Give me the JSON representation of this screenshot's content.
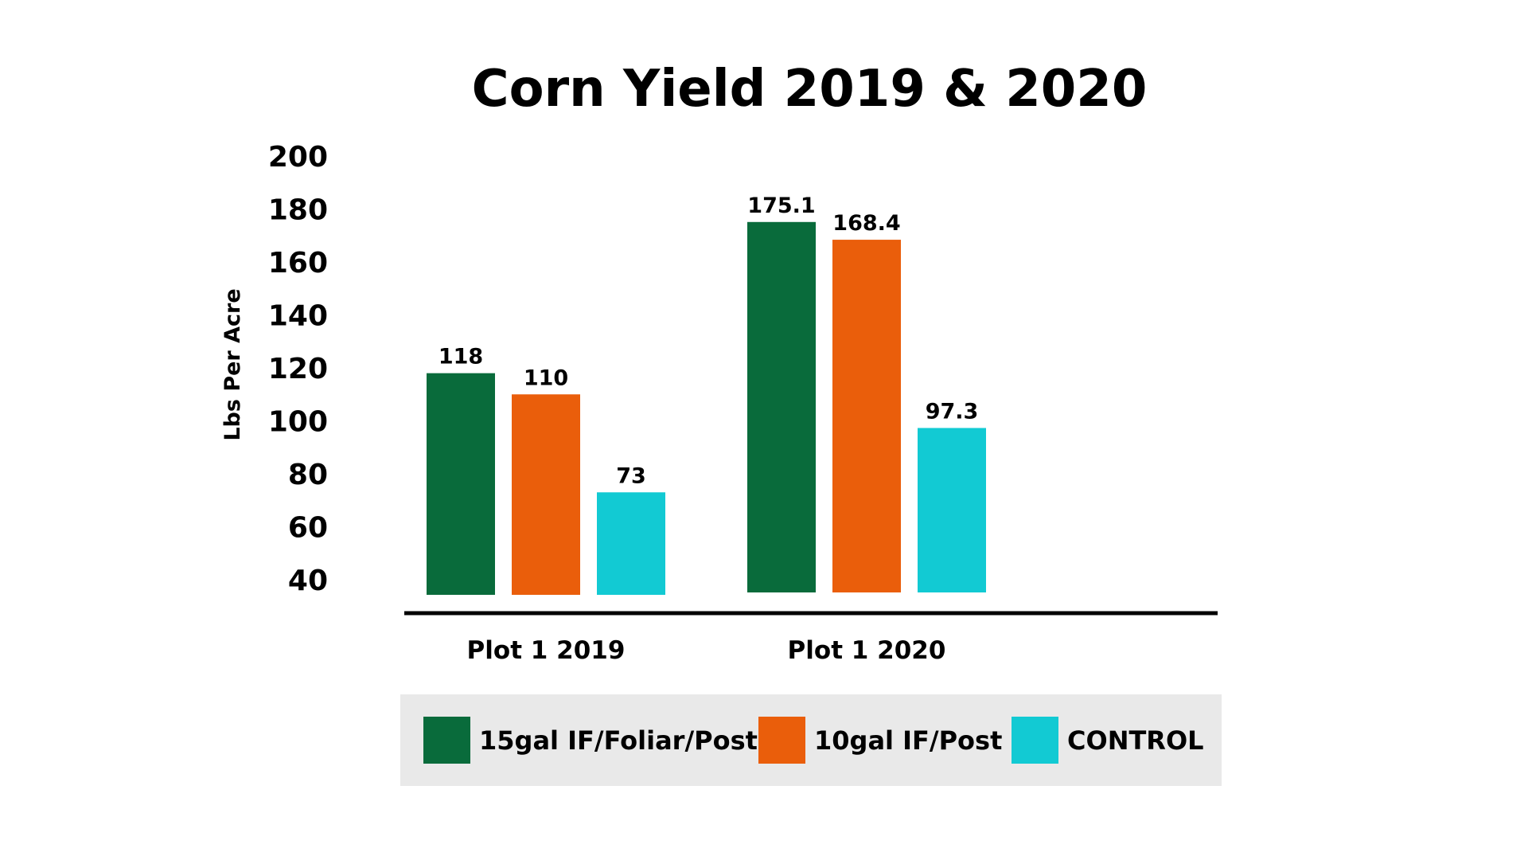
{
  "chart_data": {
    "type": "bar",
    "title": "Corn Yield 2019 & 2020",
    "xlabel": "",
    "ylabel": "Lbs Per Acre",
    "ylim": [
      40,
      200
    ],
    "yticks": [
      40,
      60,
      80,
      100,
      120,
      140,
      160,
      180,
      200
    ],
    "categories": [
      "Plot 1 2019",
      "Plot 1 2020"
    ],
    "series": [
      {
        "name": "15gal IF/Foliar/Post",
        "color": "#096b3b",
        "values": [
          118,
          175.1
        ],
        "labels": [
          "118",
          "175.1"
        ]
      },
      {
        "name": "10gal IF/Post",
        "color": "#ea5e0b",
        "values": [
          110,
          168.4
        ],
        "labels": [
          "110",
          "168.4"
        ]
      },
      {
        "name": "CONTROL",
        "color": "#12cad3",
        "values": [
          73,
          97.3
        ],
        "labels": [
          "73",
          "97.3"
        ]
      }
    ],
    "grid": false,
    "legend": "bottom",
    "legend_background": "#e9e9e9",
    "axis_color": "#000000"
  }
}
